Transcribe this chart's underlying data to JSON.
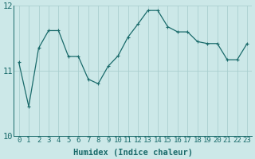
{
  "x": [
    0,
    1,
    2,
    3,
    4,
    5,
    6,
    7,
    8,
    9,
    10,
    11,
    12,
    13,
    14,
    15,
    16,
    17,
    18,
    19,
    20,
    21,
    22,
    23
  ],
  "y": [
    11.13,
    10.45,
    11.35,
    11.62,
    11.62,
    11.22,
    11.22,
    10.87,
    10.8,
    11.07,
    11.23,
    11.52,
    11.72,
    11.93,
    11.93,
    11.68,
    11.6,
    11.6,
    11.45,
    11.42,
    11.42,
    11.17,
    11.17,
    11.42
  ],
  "xlabel": "Humidex (Indice chaleur)",
  "ylim": [
    10,
    12
  ],
  "xlim_left": -0.5,
  "xlim_right": 23.5,
  "yticks": [
    10,
    11,
    12
  ],
  "xticks": [
    0,
    1,
    2,
    3,
    4,
    5,
    6,
    7,
    8,
    9,
    10,
    11,
    12,
    13,
    14,
    15,
    16,
    17,
    18,
    19,
    20,
    21,
    22,
    23
  ],
  "line_color": "#1a6b6b",
  "marker": "+",
  "marker_size": 3.5,
  "marker_lw": 0.8,
  "line_width": 0.9,
  "bg_color": "#cce8e8",
  "grid_color": "#aacfcf",
  "tick_fontsize": 6.5,
  "xlabel_fontsize": 7.5,
  "ytick_fontsize": 7.5
}
